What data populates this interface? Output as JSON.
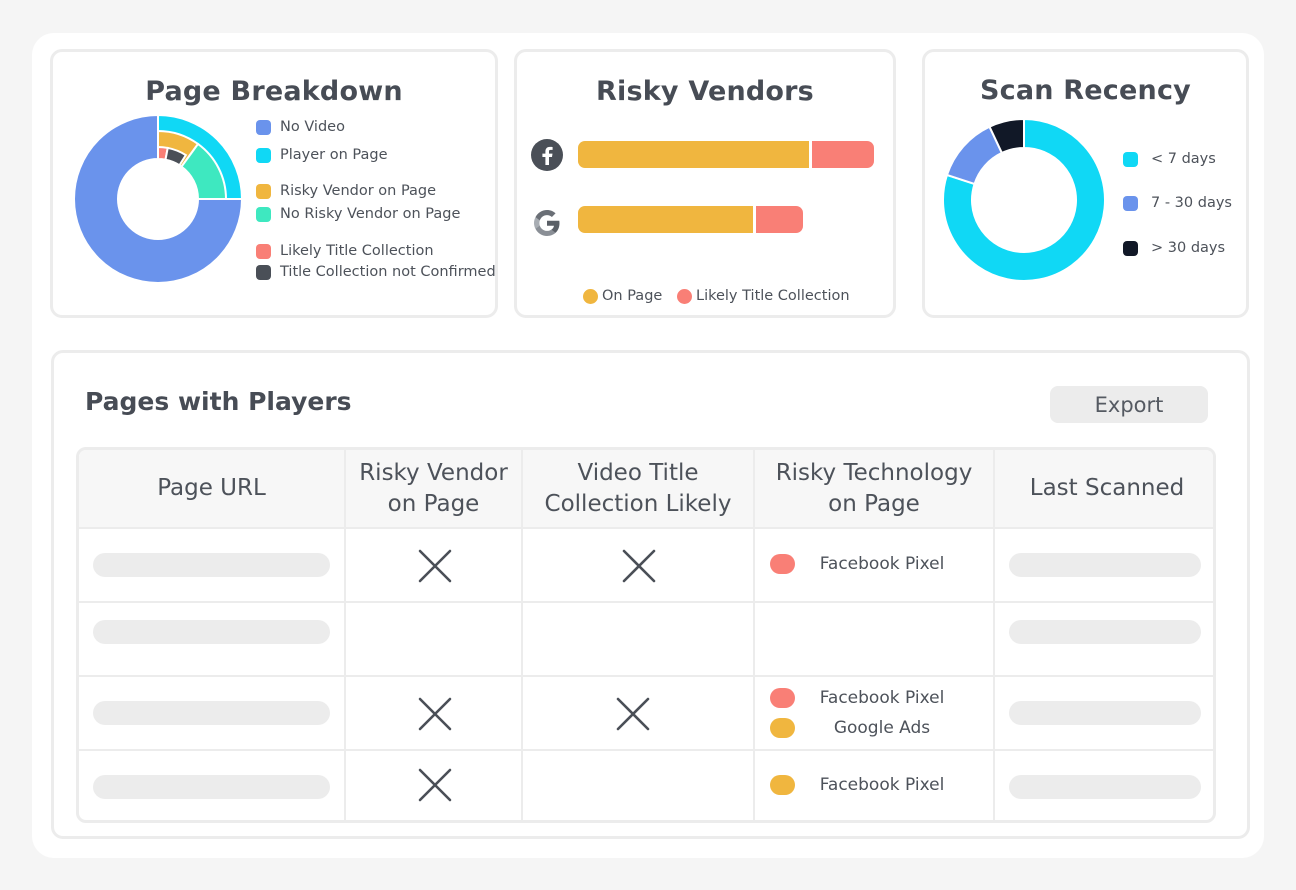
{
  "page_breakdown": {
    "title": "Page Breakdown",
    "legend": [
      {
        "label": "No Video",
        "color": "#6a93ec"
      },
      {
        "label": "Player on Page",
        "color": "#10d8f5"
      },
      {
        "label": "Risky Vendor on Page",
        "color": "#f0b63f"
      },
      {
        "label": "No Risky Vendor on Page",
        "color": "#3ee8c0"
      },
      {
        "label": "Likely Title Collection",
        "color": "#f97f76"
      },
      {
        "label": "Title Collection not Confirmed",
        "color": "#4a4f57"
      }
    ],
    "outer_ring": [
      {
        "label": "No Video",
        "value": 0.75
      },
      {
        "label": "Player on Page",
        "value": 0.25
      }
    ],
    "inner_ring": [
      {
        "label": "Risky Vendor on Page",
        "value": 0.1
      },
      {
        "label": "No Risky Vendor on Page",
        "value": 0.15
      }
    ],
    "innermost_ring": [
      {
        "label": "Likely Title Collection",
        "value": 0.03
      },
      {
        "label": "Title Collection not Confirmed",
        "value": 0.06
      }
    ]
  },
  "risky_vendors": {
    "title": "Risky Vendors",
    "vendors": [
      {
        "icon": "facebook-icon",
        "on_page": 0.79,
        "likely_title_collection": 0.21,
        "total": 1.0
      },
      {
        "icon": "google-icon",
        "on_page": 0.6,
        "likely_title_collection": 0.16,
        "total": 0.76
      }
    ],
    "legend": [
      {
        "label": "On Page",
        "color": "#f0b63f"
      },
      {
        "label": "Likely Title Collection",
        "color": "#f97f76"
      }
    ]
  },
  "scan_recency": {
    "title": "Scan Recency",
    "legend": [
      {
        "label": "< 7 days",
        "color": "#10d8f5"
      },
      {
        "label": "7 - 30 days",
        "color": "#6a93ec"
      },
      {
        "label": "> 30 days",
        "color": "#111827"
      }
    ],
    "slices": [
      {
        "label": "< 7 days",
        "value": 0.8
      },
      {
        "label": "7 - 30 days",
        "value": 0.13
      },
      {
        "label": "> 30 days",
        "value": 0.07
      }
    ]
  },
  "table": {
    "title": "Pages with Players",
    "export_label": "Export",
    "headers": {
      "page_url": "Page URL",
      "risky_vendor_l1": "Risky Vendor",
      "risky_vendor_l2": "on Page",
      "video_title_l1": "Video Title",
      "video_title_l2": "Collection Likely",
      "risky_tech_l1": "Risky Technology",
      "risky_tech_l2": "on Page",
      "last_scanned": "Last Scanned"
    },
    "rows": [
      {
        "risky_vendor": true,
        "title_collection": true,
        "technologies": [
          {
            "name": "Facebook Pixel",
            "color": "#f97f76"
          }
        ]
      },
      {
        "risky_vendor": false,
        "title_collection": false,
        "technologies": []
      },
      {
        "risky_vendor": true,
        "title_collection": true,
        "technologies": [
          {
            "name": "Facebook Pixel",
            "color": "#f97f76"
          },
          {
            "name": "Google Ads",
            "color": "#f0b63f"
          }
        ]
      },
      {
        "risky_vendor": true,
        "title_collection": false,
        "technologies": [
          {
            "name": "Facebook Pixel",
            "color": "#f0b63f"
          }
        ]
      }
    ]
  }
}
